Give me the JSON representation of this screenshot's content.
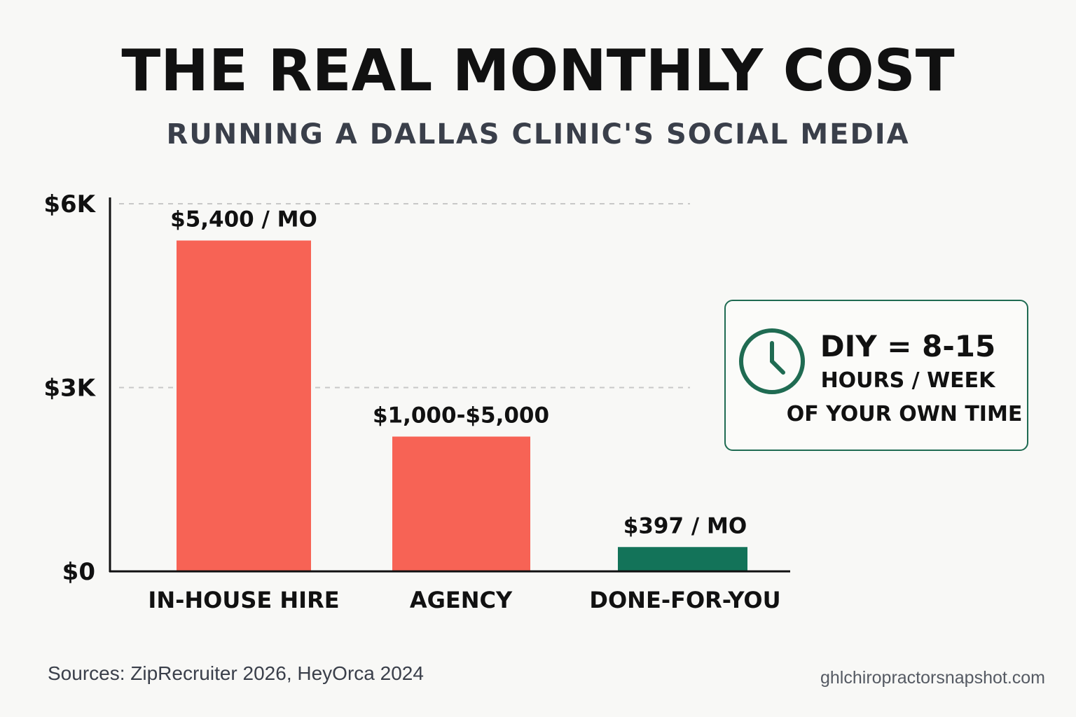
{
  "header": {
    "title": "THE REAL MONTHLY COST",
    "subtitle": "RUNNING A DALLAS CLINIC'S SOCIAL MEDIA"
  },
  "chart_data": {
    "type": "bar",
    "categories": [
      "IN-HOUSE HIRE",
      "AGENCY",
      "DONE-FOR-YOU"
    ],
    "values": [
      5400,
      2200,
      397
    ],
    "data_labels": [
      "$5,400 / MO",
      "$1,000-$5,000",
      "$397 / MO"
    ],
    "bar_colors": [
      "#f76355",
      "#f76355",
      "#137359"
    ],
    "ylim": [
      0,
      6000
    ],
    "y_ticks": [
      {
        "value": 0,
        "label": "$0"
      },
      {
        "value": 3000,
        "label": "$3K"
      },
      {
        "value": 6000,
        "label": "$6K"
      }
    ],
    "grid": "dashed horizontal at $3K and $6K",
    "title": "THE REAL MONTHLY COST",
    "xlabel": "",
    "ylabel": ""
  },
  "callout": {
    "icon": "clock-icon",
    "line1": "DIY = 8-15",
    "line2": "HOURS / WEEK",
    "line3": "OF YOUR OWN TIME",
    "border_color": "#1f6b52"
  },
  "footer": {
    "sources": "Sources: ZipRecruiter 2026, HeyOrca 2024",
    "site": "ghlchiropractorsnapshot.com"
  }
}
